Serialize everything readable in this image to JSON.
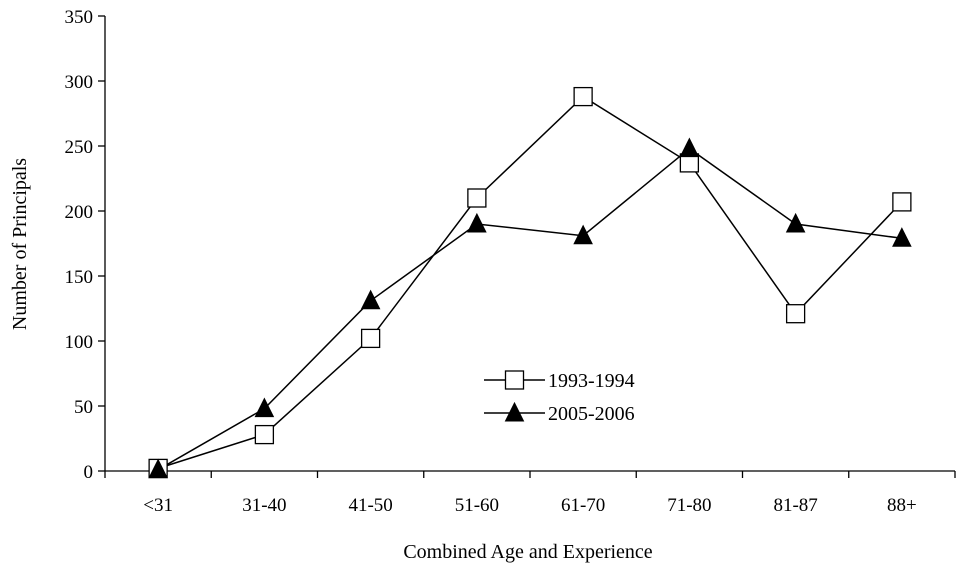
{
  "chart_data": {
    "type": "line",
    "title": "",
    "xlabel": "Combined Age and Experience",
    "ylabel": "Number of Principals",
    "categories": [
      "<31",
      "31-40",
      "41-50",
      "51-60",
      "61-70",
      "71-80",
      "81-87",
      "88+"
    ],
    "ylim": [
      0,
      350
    ],
    "yticks": [
      0,
      50,
      100,
      150,
      200,
      250,
      300,
      350
    ],
    "grid": false,
    "legend_position": "center",
    "series": [
      {
        "name": "1993-1994",
        "marker": "open-square",
        "values": [
          2,
          28,
          102,
          210,
          288,
          237,
          121,
          207
        ]
      },
      {
        "name": "2005-2006",
        "marker": "filled-triangle",
        "values": [
          1,
          48,
          131,
          190,
          181,
          248,
          190,
          179
        ]
      }
    ]
  }
}
